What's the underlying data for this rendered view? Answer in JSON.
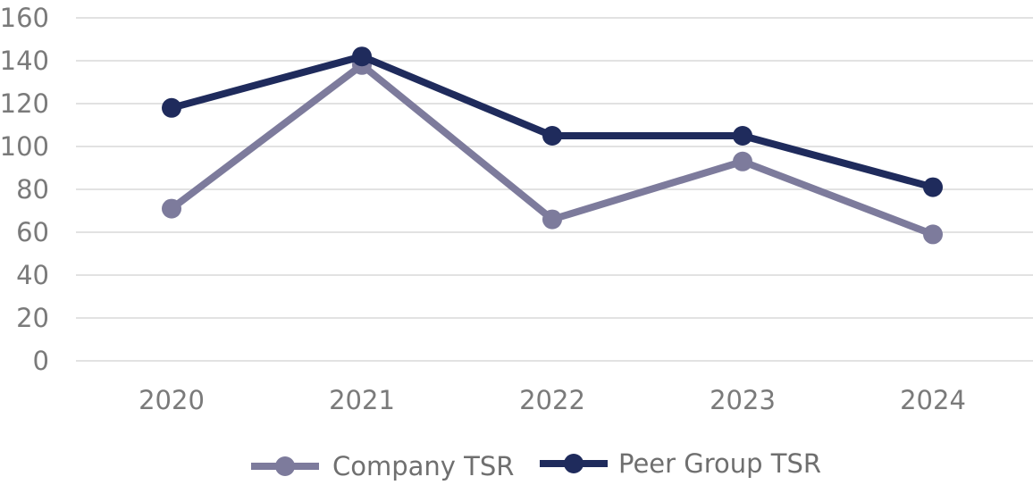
{
  "chart_data": {
    "type": "line",
    "title": "",
    "xlabel": "",
    "ylabel": "",
    "categories": [
      "2020",
      "2021",
      "2022",
      "2023",
      "2024"
    ],
    "ylim": [
      0,
      160
    ],
    "yticks": [
      0,
      20,
      40,
      60,
      80,
      100,
      120,
      140,
      160
    ],
    "grid": true,
    "legend_position": "bottom",
    "series": [
      {
        "name": "Company TSR",
        "values": [
          71,
          138,
          66,
          93,
          59
        ],
        "color": "#7d7b9c"
      },
      {
        "name": "Peer Group TSR",
        "values": [
          118,
          142,
          105,
          105,
          81
        ],
        "color": "#1f2b5c"
      }
    ]
  },
  "colors": {
    "grid": "#d9d9d9",
    "tick_text": "#7a7a7a",
    "legend_text": "#6f6f6f"
  }
}
